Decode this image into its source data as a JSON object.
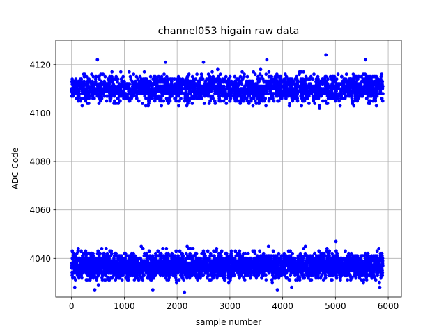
{
  "chart_data": {
    "type": "scatter",
    "title": "channel053 higain raw data",
    "xlabel": "sample number",
    "ylabel": "ADC Code",
    "xlim": [
      -300,
      6250
    ],
    "ylim": [
      4024,
      4130
    ],
    "xticks": [
      0,
      1000,
      2000,
      3000,
      4000,
      5000,
      6000
    ],
    "yticks": [
      4040,
      4060,
      4080,
      4100,
      4120
    ],
    "grid": true,
    "legend": "none",
    "marker_color": "#0000ff",
    "series": [
      {
        "n_samples": 5900,
        "x_range": [
          0,
          5900
        ],
        "bands": [
          {
            "center": 4110,
            "low": 4102,
            "high": 4124,
            "fraction": 0.4
          },
          {
            "center": 4037,
            "low": 4026,
            "high": 4047,
            "fraction": 0.6
          }
        ],
        "points": [
          [
            490,
            4122
          ],
          [
            1780,
            4121
          ],
          [
            2500,
            4121
          ],
          [
            3700,
            4122
          ],
          [
            4820,
            4124
          ],
          [
            5570,
            4122
          ],
          [
            4700,
            4102
          ],
          [
            2030,
            4103
          ],
          [
            200,
            4103
          ],
          [
            5010,
            4047
          ],
          [
            1320,
            4045
          ],
          [
            2190,
            4045
          ],
          [
            4430,
            4045
          ],
          [
            440,
            4027
          ],
          [
            1540,
            4027
          ],
          [
            2140,
            4026
          ],
          [
            3900,
            4027
          ],
          [
            4170,
            4028
          ],
          [
            5840,
            4028
          ],
          [
            60,
            4028
          ]
        ]
      }
    ]
  }
}
